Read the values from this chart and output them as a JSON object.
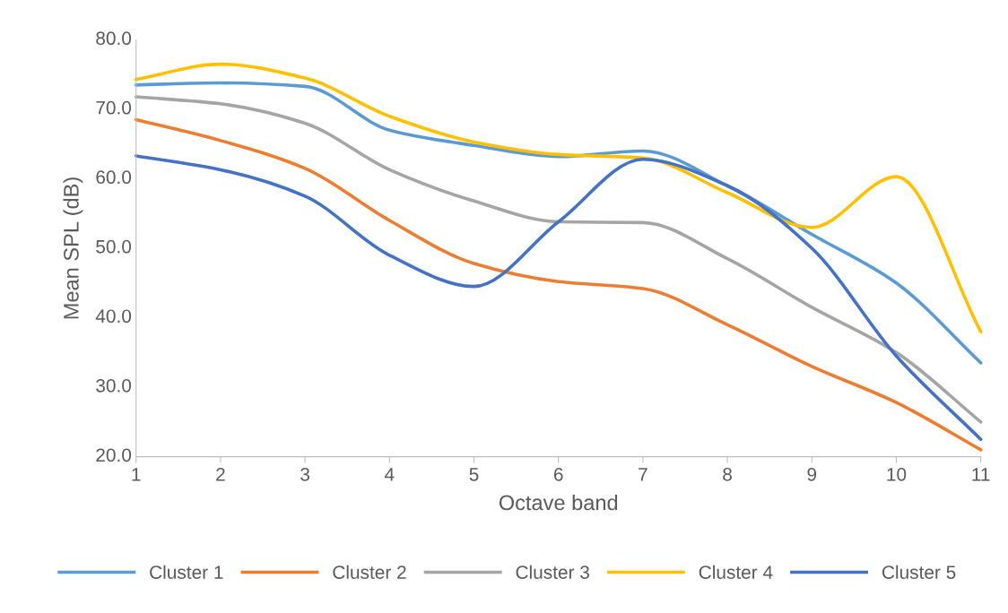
{
  "chart_data": {
    "type": "line",
    "xlabel": "Octave band",
    "ylabel": "Mean SPL (dB)",
    "categories": [
      "1",
      "2",
      "3",
      "4",
      "5",
      "6",
      "7",
      "8",
      "9",
      "10",
      "11"
    ],
    "ylim": [
      20,
      80
    ],
    "yticks": [
      {
        "value": 20,
        "label": "20.0"
      },
      {
        "value": 30,
        "label": "30.0"
      },
      {
        "value": 40,
        "label": "40.0"
      },
      {
        "value": 50,
        "label": "50.0"
      },
      {
        "value": 60,
        "label": "60.0"
      },
      {
        "value": 70,
        "label": "70.0"
      },
      {
        "value": 80,
        "label": "80.0"
      }
    ],
    "grid": false,
    "legend": "bottom",
    "marker": "none",
    "line_style": "solid",
    "series": [
      {
        "name": "Cluster 1",
        "color": "#5b9bd5",
        "values": [
          73.5,
          73.8,
          73.3,
          67.0,
          64.8,
          63.2,
          64.0,
          59.0,
          52.0,
          45.0,
          33.5
        ]
      },
      {
        "name": "Cluster 2",
        "color": "#ed7d31",
        "values": [
          68.5,
          65.5,
          61.5,
          54.0,
          47.8,
          45.2,
          44.2,
          39.0,
          33.0,
          27.8,
          21.0
        ]
      },
      {
        "name": "Cluster 3",
        "color": "#a5a5a5",
        "values": [
          71.8,
          70.8,
          68.0,
          61.3,
          56.8,
          53.8,
          53.7,
          48.5,
          41.5,
          35.0,
          25.0
        ]
      },
      {
        "name": "Cluster 4",
        "color": "#ffc000",
        "values": [
          74.3,
          76.5,
          74.5,
          69.0,
          65.3,
          63.5,
          63.0,
          58.0,
          53.0,
          60.3,
          38.0
        ]
      },
      {
        "name": "Cluster 5",
        "color": "#4472c4",
        "values": [
          63.3,
          61.3,
          57.5,
          49.0,
          44.5,
          53.8,
          62.8,
          59.0,
          50.0,
          34.5,
          22.5
        ]
      }
    ]
  }
}
